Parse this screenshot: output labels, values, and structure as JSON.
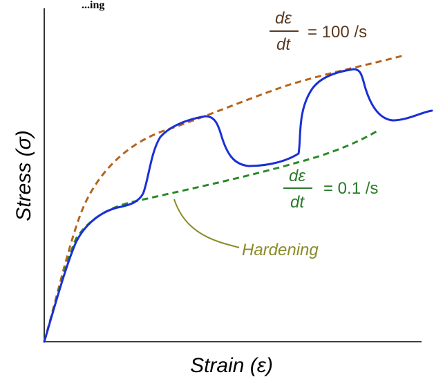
{
  "diagram": {
    "y_axis_label": "Stress (σ)",
    "x_axis_label": "Strain (ε)",
    "high_rate": {
      "numerator": "dε",
      "denominator": "dt",
      "value": "= 100 /s",
      "color": "#5a3a20",
      "curve_color": "#b5651d"
    },
    "low_rate": {
      "numerator": "dε",
      "denominator": "dt",
      "value": "= 0.1 /s",
      "color": "#2a7a2a",
      "curve_color": "#2a8a2a"
    },
    "hardening": {
      "label": "Hardening",
      "color": "#8a8a2a"
    },
    "stress_strain_curve_color": "#1a2fd6",
    "partial_header": "...ing"
  }
}
